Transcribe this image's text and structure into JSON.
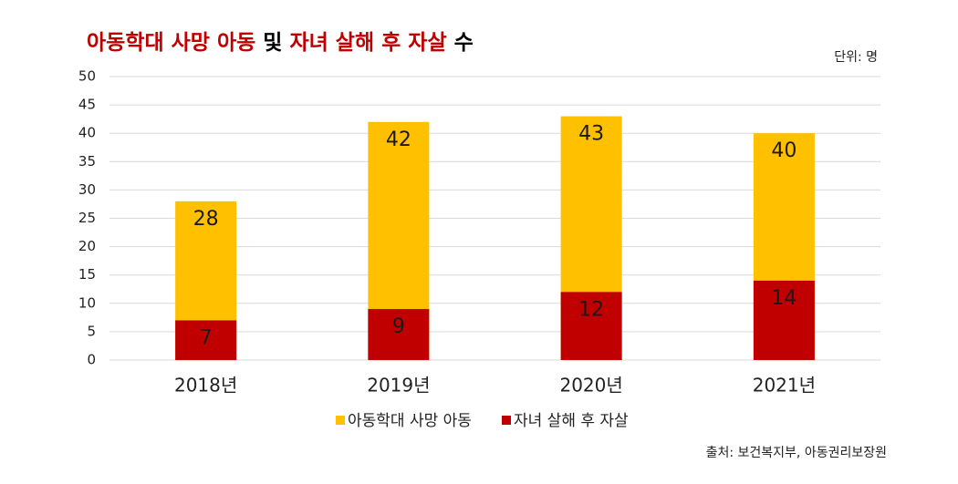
{
  "chart_data": {
    "type": "bar",
    "title_parts": [
      {
        "text": "아동학대 사망 아동",
        "color": "#c00000"
      },
      {
        "text": " 및 ",
        "color": "#000000"
      },
      {
        "text": "자녀 살해 후 자살",
        "color": "#c00000"
      },
      {
        "text": " 수",
        "color": "#000000"
      }
    ],
    "unit_note": "단위: 명",
    "source": "출처: 보건복지부, 아동권리보장원",
    "categories": [
      "2018년",
      "2019년",
      "2020년",
      "2021년"
    ],
    "series": [
      {
        "name": "아동학대 사망 아동",
        "color": "#ffc000",
        "values": [
          28,
          42,
          43,
          40
        ]
      },
      {
        "name": "자녀 살해 후 자살",
        "color": "#c00000",
        "values": [
          7,
          9,
          12,
          14
        ]
      }
    ],
    "ylim": [
      0,
      50
    ],
    "yticks": [
      0,
      5,
      10,
      15,
      20,
      25,
      30,
      35,
      40,
      45,
      50
    ],
    "grid": true
  }
}
